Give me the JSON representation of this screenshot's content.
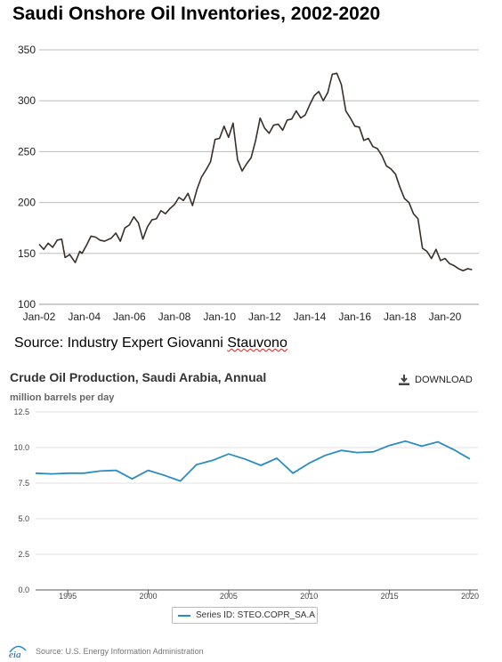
{
  "chart_top": {
    "title": "Saudi Onshore Oil Inventories, 2002-2020",
    "source": "Source: Industry Expert Giovanni Stauvono",
    "source_prefix": "Source: Industry Expert Giovanni ",
    "source_name": "Stauvono",
    "colors": {
      "line": "#3a302b",
      "grid": "#bdbdbd"
    }
  },
  "chart_bottom": {
    "title": "Crude Oil Production, Saudi Arabia, Annual",
    "download_label": "DOWNLOAD",
    "ylabel": "million barrels per day",
    "legend_label": "Series ID: STEO.COPR_SA.A",
    "footer": "Source: U.S. Energy Information Administration",
    "logo_text": "eia",
    "colors": {
      "line": "#2b8cc4",
      "grid": "#e0e0e0"
    }
  },
  "chart_data": [
    {
      "type": "line",
      "title": "Saudi Onshore Oil Inventories, 2002-2020",
      "xlabel": "",
      "ylabel": "",
      "ylim": [
        100,
        350
      ],
      "yticks": [
        100,
        150,
        200,
        250,
        300,
        350
      ],
      "xlim": [
        2002,
        2021.5
      ],
      "xticks": [
        2002,
        2004,
        2006,
        2008,
        2010,
        2012,
        2014,
        2016,
        2018,
        2020
      ],
      "xtick_labels": [
        "Jan-02",
        "Jan-04",
        "Jan-06",
        "Jan-08",
        "Jan-10",
        "Jan-12",
        "Jan-14",
        "Jan-16",
        "Jan-18",
        "Jan-20"
      ],
      "grid": "horizontal",
      "series": [
        {
          "x": [
            2002.0,
            2002.2,
            2002.4,
            2002.6,
            2002.8,
            2003.0,
            2003.15,
            2003.3,
            2003.35,
            2003.6,
            2003.8,
            2003.9,
            2004.1,
            2004.3,
            2004.5,
            2004.7,
            2004.9,
            2005.2,
            2005.4,
            2005.6,
            2005.8,
            2006.0,
            2006.2,
            2006.4,
            2006.6,
            2006.8,
            2007.0,
            2007.2,
            2007.4,
            2007.6,
            2007.8,
            2008.0,
            2008.2,
            2008.4,
            2008.6,
            2008.8,
            2009.0,
            2009.2,
            2009.4,
            2009.6,
            2009.8,
            2010.0,
            2010.2,
            2010.4,
            2010.6,
            2010.8,
            2011.0,
            2011.2,
            2011.4,
            2011.6,
            2011.8,
            2012.0,
            2012.2,
            2012.4,
            2012.6,
            2012.8,
            2013.0,
            2013.2,
            2013.4,
            2013.6,
            2013.8,
            2014.0,
            2014.2,
            2014.4,
            2014.6,
            2014.8,
            2015.0,
            2015.2,
            2015.4,
            2015.6,
            2015.8,
            2016.0,
            2016.2,
            2016.4,
            2016.6,
            2016.8,
            2017.0,
            2017.2,
            2017.4,
            2017.6,
            2017.8,
            2018.0,
            2018.2,
            2018.4,
            2018.6,
            2018.8,
            2019.0,
            2019.2,
            2019.4,
            2019.6,
            2019.8,
            2020.0,
            2020.2,
            2020.4,
            2020.6,
            2020.8,
            2021.0,
            2021.2
          ],
          "values": [
            159,
            154,
            160,
            156,
            163,
            164,
            146,
            148,
            149,
            141,
            152,
            150,
            158,
            167,
            166,
            163,
            162,
            165,
            170,
            162,
            175,
            178,
            186,
            180,
            164,
            176,
            183,
            184,
            192,
            189,
            194,
            198,
            205,
            202,
            209,
            197,
            213,
            225,
            232,
            240,
            262,
            263,
            275,
            264,
            278,
            242,
            231,
            238,
            244,
            261,
            283,
            273,
            268,
            276,
            277,
            271,
            281,
            282,
            290,
            283,
            286,
            296,
            305,
            309,
            300,
            308,
            326,
            327,
            316,
            290,
            283,
            275,
            274,
            261,
            263,
            255,
            253,
            246,
            236,
            233,
            228,
            215,
            204,
            200,
            189,
            184,
            155,
            152,
            145,
            154,
            143,
            145,
            140,
            138,
            135,
            133,
            135,
            134
          ]
        }
      ]
    },
    {
      "type": "line",
      "title": "Crude Oil Production, Saudi Arabia, Annual",
      "xlabel": "",
      "ylabel": "million barrels per day",
      "ylim": [
        0,
        12.5
      ],
      "yticks": [
        0.0,
        2.5,
        5.0,
        7.5,
        10.0,
        12.5
      ],
      "ytick_labels": [
        "0.0",
        "2.5",
        "5.0",
        "7.5",
        "10.0",
        "12.5"
      ],
      "xlim": [
        1993,
        2020.5
      ],
      "xticks": [
        1995,
        2000,
        2005,
        2010,
        2015,
        2020
      ],
      "xtick_labels": [
        "1995",
        "2000",
        "2005",
        "2010",
        "2015",
        "2020"
      ],
      "grid": "horizontal",
      "legend": "bottom-center",
      "series": [
        {
          "name": "Series ID: STEO.COPR_SA.A",
          "x": [
            1993,
            1994,
            1995,
            1996,
            1997,
            1998,
            1999,
            2000,
            2001,
            2002,
            2003,
            2004,
            2005,
            2006,
            2007,
            2008,
            2009,
            2010,
            2011,
            2012,
            2013,
            2014,
            2015,
            2016,
            2017,
            2018,
            2019,
            2020
          ],
          "values": [
            8.2,
            8.15,
            8.2,
            8.2,
            8.35,
            8.4,
            7.8,
            8.4,
            8.05,
            7.65,
            8.8,
            9.1,
            9.55,
            9.2,
            8.75,
            9.25,
            8.2,
            8.9,
            9.45,
            9.8,
            9.65,
            9.7,
            10.15,
            10.45,
            10.1,
            10.4,
            9.85,
            9.2
          ]
        }
      ]
    }
  ]
}
